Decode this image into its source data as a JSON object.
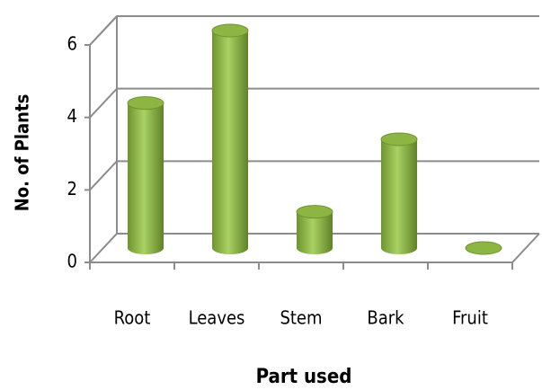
{
  "chart_data": {
    "type": "bar",
    "categories": [
      "Root",
      "Leaves",
      "Stem",
      "Bark",
      "Fruit"
    ],
    "values": [
      4,
      6,
      1,
      3,
      0
    ],
    "color": "#8db544",
    "ylim": [
      0,
      6
    ],
    "yticks": [
      0,
      2,
      4,
      6
    ],
    "grid": true,
    "xlabel": "Part used",
    "ylabel": "No. of Plants"
  }
}
